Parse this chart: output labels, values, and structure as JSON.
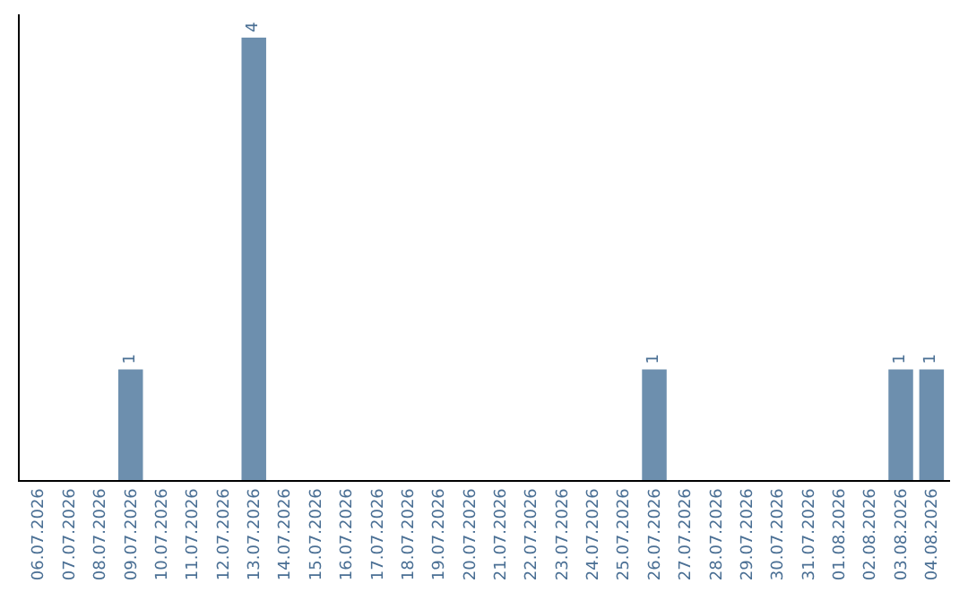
{
  "chart_data": {
    "type": "bar",
    "categories": [
      "06.07.2026",
      "07.07.2026",
      "08.07.2026",
      "09.07.2026",
      "10.07.2026",
      "11.07.2026",
      "12.07.2026",
      "13.07.2026",
      "14.07.2026",
      "15.07.2026",
      "16.07.2026",
      "17.07.2026",
      "18.07.2026",
      "19.07.2026",
      "20.07.2026",
      "21.07.2026",
      "22.07.2026",
      "23.07.2026",
      "24.07.2026",
      "25.07.2026",
      "26.07.2026",
      "27.07.2026",
      "28.07.2026",
      "29.07.2026",
      "30.07.2026",
      "31.07.2026",
      "01.08.2026",
      "02.08.2026",
      "03.08.2026",
      "04.08.2026"
    ],
    "values": [
      0,
      0,
      0,
      1,
      0,
      0,
      0,
      4,
      0,
      0,
      0,
      0,
      0,
      0,
      0,
      0,
      0,
      0,
      0,
      0,
      1,
      0,
      0,
      0,
      0,
      0,
      0,
      0,
      1,
      1
    ],
    "value_labels": [
      null,
      null,
      null,
      "1",
      null,
      null,
      null,
      "4",
      null,
      null,
      null,
      null,
      null,
      null,
      null,
      null,
      null,
      null,
      null,
      null,
      "1",
      null,
      null,
      null,
      null,
      null,
      null,
      null,
      "1",
      "1"
    ],
    "color": "#6d8fae",
    "tick_labels": "x"
  }
}
